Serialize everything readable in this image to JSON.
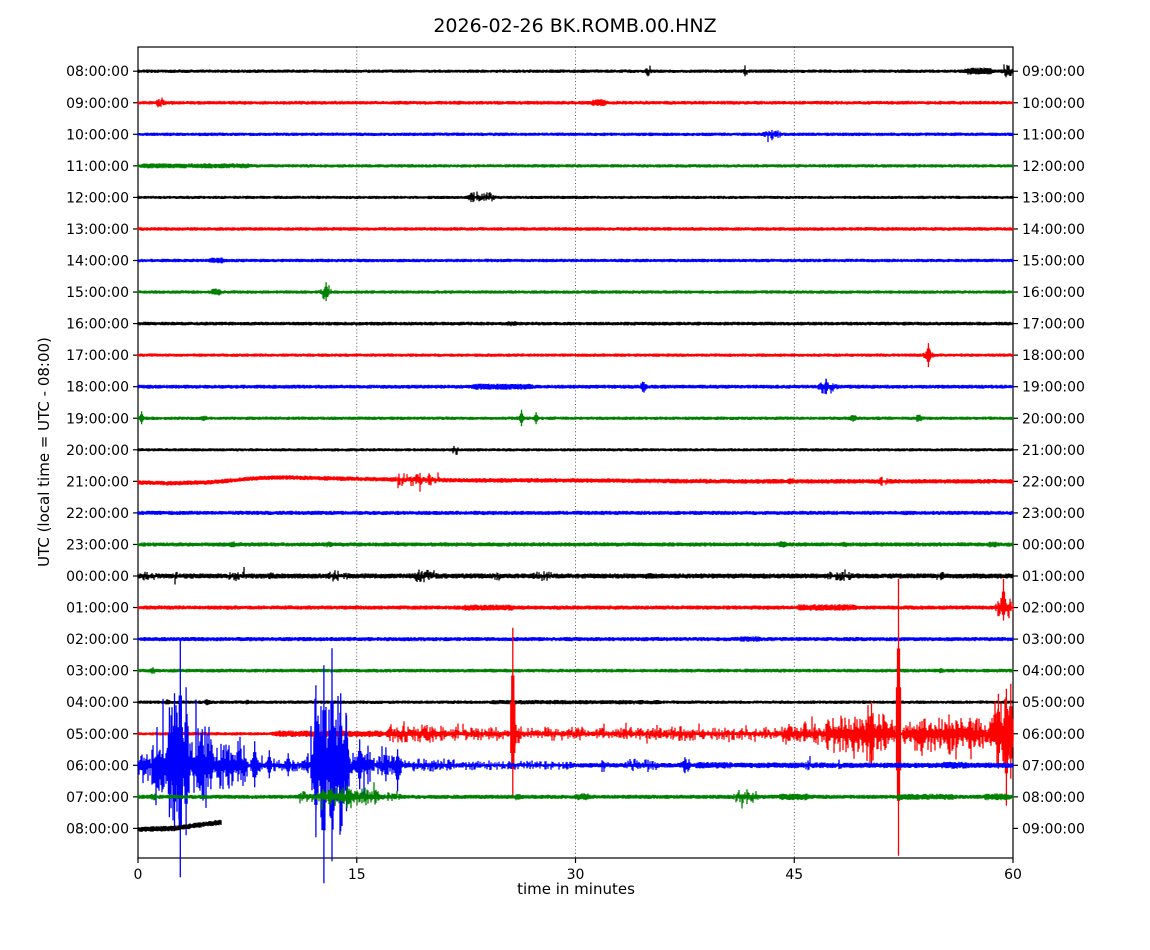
{
  "title": "2026-02-26 BK.ROMB.00.HNZ",
  "xlabel": "time in minutes",
  "ylabel": "UTC (local time = UTC - 08:00)",
  "chart_data": {
    "type": "line",
    "variant": "helicorder-dayplot-seismogram",
    "title": "2026-02-26 BK.ROMB.00.HNZ",
    "xlabel": "time in minutes",
    "ylabel": "UTC (local time = UTC - 08:00)",
    "xlim": [
      0,
      60
    ],
    "x_ticks": [
      0,
      15,
      30,
      45,
      60
    ],
    "grid_minutes": [
      15,
      30,
      45
    ],
    "minutes_per_row": 60,
    "color_cycle": [
      "#000000",
      "#ff0000",
      "#0000ff",
      "#008000"
    ],
    "rows": [
      {
        "utc": "08:00:00",
        "local": "09:00:00",
        "color": "#000000",
        "base": 1.5,
        "end": 60,
        "events": [
          [
            34.8,
            35.2,
            4
          ],
          [
            41.5,
            41.9,
            4
          ],
          [
            56.5,
            58.8,
            3
          ],
          [
            59.2,
            60,
            4.2
          ]
        ],
        "spikes": [],
        "wander": []
      },
      {
        "utc": "09:00:00",
        "local": "10:00:00",
        "color": "#ff0000",
        "base": 1.6,
        "end": 60,
        "events": [
          [
            1.2,
            1.9,
            3.6
          ],
          [
            30.9,
            32.3,
            3
          ]
        ],
        "spikes": [],
        "wander": []
      },
      {
        "utc": "10:00:00",
        "local": "11:00:00",
        "color": "#0000ff",
        "base": 1.5,
        "end": 60,
        "events": [
          [
            42.8,
            44.2,
            4
          ]
        ],
        "spikes": [],
        "wander": []
      },
      {
        "utc": "11:00:00",
        "local": "12:00:00",
        "color": "#008000",
        "base": 1.5,
        "end": 60,
        "events": [
          [
            0,
            8,
            2.2
          ]
        ],
        "spikes": [],
        "wander": []
      },
      {
        "utc": "12:00:00",
        "local": "13:00:00",
        "color": "#000000",
        "base": 1.4,
        "end": 60,
        "events": [
          [
            22.5,
            24.6,
            3.4
          ]
        ],
        "spikes": [],
        "wander": []
      },
      {
        "utc": "13:00:00",
        "local": "14:00:00",
        "color": "#ff0000",
        "base": 1.6,
        "end": 60,
        "events": [],
        "spikes": [],
        "wander": []
      },
      {
        "utc": "14:00:00",
        "local": "15:00:00",
        "color": "#0000ff",
        "base": 1.5,
        "end": 60,
        "events": [
          [
            4.7,
            6.1,
            2.6
          ]
        ],
        "spikes": [],
        "wander": []
      },
      {
        "utc": "15:00:00",
        "local": "16:00:00",
        "color": "#008000",
        "base": 1.5,
        "end": 60,
        "events": [
          [
            4.9,
            5.8,
            3
          ],
          [
            12.5,
            13.3,
            5
          ]
        ],
        "spikes": [
          [
            12.9,
            10,
            9
          ]
        ],
        "wander": []
      },
      {
        "utc": "16:00:00",
        "local": "17:00:00",
        "color": "#000000",
        "base": 1.6,
        "end": 60,
        "events": [
          [
            25,
            26.2,
            2.2
          ]
        ],
        "spikes": [],
        "wander": []
      },
      {
        "utc": "17:00:00",
        "local": "18:00:00",
        "color": "#ff0000",
        "base": 1.5,
        "end": 60,
        "events": [
          [
            53.8,
            54.6,
            4
          ]
        ],
        "spikes": [
          [
            54.2,
            12,
            12
          ]
        ],
        "wander": []
      },
      {
        "utc": "18:00:00",
        "local": "19:00:00",
        "color": "#0000ff",
        "base": 1.7,
        "end": 60,
        "events": [
          [
            22.7,
            27.3,
            2.6
          ],
          [
            34.4,
            34.9,
            3.5
          ],
          [
            46.6,
            48,
            5.5
          ]
        ],
        "spikes": [
          [
            34.6,
            5,
            5
          ],
          [
            47.2,
            7.5,
            7.5
          ]
        ],
        "wander": []
      },
      {
        "utc": "19:00:00",
        "local": "20:00:00",
        "color": "#008000",
        "base": 1.5,
        "end": 60,
        "events": [
          [
            4.3,
            4.8,
            2.5
          ],
          [
            48.8,
            49.3,
            3
          ],
          [
            53.3,
            53.8,
            3
          ]
        ],
        "spikes": [
          [
            0.25,
            7,
            6
          ],
          [
            26.3,
            8.5,
            8
          ],
          [
            27.3,
            6,
            6
          ]
        ],
        "wander": []
      },
      {
        "utc": "20:00:00",
        "local": "21:00:00",
        "color": "#000000",
        "base": 1.4,
        "end": 60,
        "events": [
          [
            21.5,
            22,
            3.5
          ]
        ],
        "spikes": [],
        "wander": []
      },
      {
        "utc": "21:00:00",
        "local": "22:00:00",
        "color": "#ff0000",
        "base": 2,
        "end": 60,
        "events": [
          [
            17.5,
            20.8,
            4.2
          ],
          [
            18.8,
            19.6,
            5.2
          ],
          [
            44.4,
            45.1,
            2.6
          ],
          [
            50.7,
            51.5,
            3.2
          ]
        ],
        "spikes": [],
        "wander": [
          [
            0,
            1
          ],
          [
            2,
            2
          ],
          [
            5,
            1
          ],
          [
            8,
            -3
          ],
          [
            10,
            -4
          ],
          [
            13,
            -3
          ],
          [
            17,
            -2
          ],
          [
            22,
            -1
          ],
          [
            30,
            -1
          ],
          [
            40,
            0
          ],
          [
            60,
            0
          ]
        ]
      },
      {
        "utc": "22:00:00",
        "local": "23:00:00",
        "color": "#0000ff",
        "base": 1.8,
        "end": 60,
        "events": [],
        "spikes": [],
        "wander": []
      },
      {
        "utc": "23:00:00",
        "local": "00:00:00",
        "color": "#008000",
        "base": 1.8,
        "end": 60,
        "events": [
          [
            6.2,
            6.8,
            2.6
          ],
          [
            12.8,
            13.4,
            2.6
          ],
          [
            26.8,
            27.3,
            2.2
          ],
          [
            43.9,
            44.5,
            3
          ],
          [
            48.2,
            48.8,
            2.6
          ],
          [
            58.2,
            59,
            2.6
          ]
        ],
        "spikes": [],
        "wander": []
      },
      {
        "utc": "00:00:00",
        "local": "01:00:00",
        "color": "#000000",
        "base": 2.2,
        "end": 60,
        "events": [
          [
            0,
            1.6,
            3.6
          ],
          [
            2.3,
            2.9,
            3.2
          ],
          [
            5.9,
            7.6,
            3.6
          ],
          [
            8.8,
            9.4,
            3
          ],
          [
            12.9,
            14.6,
            3.8
          ],
          [
            18.8,
            20.6,
            4.2
          ],
          [
            24.2,
            25,
            3.2
          ],
          [
            26.9,
            28.6,
            3.6
          ],
          [
            34.7,
            35.3,
            2.8
          ],
          [
            47,
            49.2,
            3.2
          ],
          [
            54.6,
            55.4,
            3.2
          ]
        ],
        "spikes": [],
        "wander": []
      },
      {
        "utc": "01:00:00",
        "local": "02:00:00",
        "color": "#ff0000",
        "base": 1.8,
        "end": 60,
        "events": [
          [
            22,
            26,
            2.6
          ],
          [
            45,
            49.5,
            2.8
          ],
          [
            58.8,
            60,
            8
          ]
        ],
        "spikes": [
          [
            59.35,
            29,
            13
          ]
        ],
        "wander": []
      },
      {
        "utc": "02:00:00",
        "local": "03:00:00",
        "color": "#0000ff",
        "base": 1.8,
        "end": 60,
        "events": [
          [
            41,
            43,
            2.3
          ]
        ],
        "spikes": [],
        "wander": []
      },
      {
        "utc": "03:00:00",
        "local": "04:00:00",
        "color": "#008000",
        "base": 1.6,
        "end": 60,
        "events": [
          [
            0.8,
            1.2,
            2.8
          ],
          [
            54.8,
            55.3,
            2.2
          ]
        ],
        "spikes": [],
        "wander": []
      },
      {
        "utc": "04:00:00",
        "local": "05:00:00",
        "color": "#000000",
        "base": 1.5,
        "end": 60,
        "events": [
          [
            1.8,
            2.2,
            2.6
          ],
          [
            4.5,
            5,
            2.6
          ],
          [
            7.3,
            7.7,
            2.4
          ],
          [
            24,
            36,
            1.9
          ]
        ],
        "spikes": [],
        "wander": []
      },
      {
        "utc": "05:00:00",
        "local": "06:00:00",
        "color": "#ff0000",
        "base": 1.5,
        "end": 60,
        "events": [
          [
            9,
            17,
            2.8
          ],
          [
            17,
            21.2,
            6
          ],
          [
            21.2,
            25.5,
            4.5
          ],
          [
            25.5,
            26.3,
            8
          ],
          [
            26.3,
            31,
            4.5
          ],
          [
            31,
            44,
            4
          ],
          [
            36.5,
            38.5,
            5
          ],
          [
            44,
            47,
            7
          ],
          [
            47,
            52,
            13
          ],
          [
            49.8,
            50.6,
            20
          ],
          [
            52.4,
            58.3,
            11
          ],
          [
            53.5,
            54.2,
            16
          ],
          [
            55.4,
            56.1,
            14
          ],
          [
            58.3,
            60,
            26
          ]
        ],
        "spikes": [
          [
            25.7,
            106,
            64
          ],
          [
            50.3,
            32,
            30
          ],
          [
            52.15,
            155,
            122
          ],
          [
            59,
            40,
            35
          ],
          [
            59.55,
            45,
            72
          ],
          [
            59.85,
            50,
            45
          ]
        ],
        "wander": []
      },
      {
        "utc": "06:00:00",
        "local": "07:00:00",
        "color": "#0000ff",
        "base": 2,
        "end": 60,
        "events": [
          [
            0,
            0.9,
            12
          ],
          [
            0.9,
            2,
            26
          ],
          [
            2,
            3.6,
            42
          ],
          [
            3.6,
            5.2,
            28
          ],
          [
            5.2,
            7.6,
            16
          ],
          [
            7.6,
            8.6,
            8
          ],
          [
            8.6,
            11.2,
            4.5
          ],
          [
            11.2,
            11.8,
            9
          ],
          [
            11.8,
            14.6,
            46
          ],
          [
            14.6,
            16.2,
            14
          ],
          [
            16.2,
            18.4,
            7
          ],
          [
            18.4,
            22,
            4.5
          ],
          [
            22,
            30,
            3.2
          ],
          [
            31.6,
            32.4,
            4.5
          ],
          [
            33.3,
            35.7,
            4.5
          ],
          [
            37.2,
            37.9,
            5.5
          ],
          [
            38,
            41,
            2.8
          ],
          [
            41,
            60,
            2.4
          ],
          [
            45.6,
            46.2,
            4
          ],
          [
            47.8,
            48.4,
            4
          ],
          [
            54.8,
            57.2,
            3
          ]
        ],
        "spikes": [
          [
            2.15,
            58,
            52
          ],
          [
            2.5,
            72,
            66
          ],
          [
            2.9,
            127,
            112
          ],
          [
            3.3,
            78,
            70
          ],
          [
            4.4,
            36,
            32
          ],
          [
            5,
            26,
            24
          ],
          [
            8,
            24,
            22
          ],
          [
            9,
            15,
            13
          ],
          [
            10.3,
            12,
            11
          ],
          [
            12.2,
            80,
            72
          ],
          [
            12.75,
            100,
            118
          ],
          [
            13.3,
            117,
            96
          ],
          [
            13.9,
            72,
            66
          ],
          [
            14.3,
            50,
            46
          ],
          [
            15.2,
            26,
            24
          ],
          [
            17,
            18,
            16
          ],
          [
            17.8,
            16,
            26
          ],
          [
            37.5,
            8,
            8
          ]
        ],
        "wander": []
      },
      {
        "utc": "07:00:00",
        "local": "08:00:00",
        "color": "#008000",
        "base": 1.8,
        "end": 60,
        "events": [
          [
            0.8,
            1.3,
            3
          ],
          [
            10.9,
            12.2,
            4
          ],
          [
            12.2,
            16.6,
            6
          ],
          [
            13.4,
            15.2,
            8
          ],
          [
            16.6,
            18.2,
            3.2
          ],
          [
            25.8,
            26.3,
            3
          ],
          [
            29.8,
            31.2,
            3
          ],
          [
            40.8,
            42.6,
            5
          ],
          [
            43.8,
            46.2,
            3
          ],
          [
            51.8,
            56.2,
            2.6
          ],
          [
            57.8,
            60,
            3
          ]
        ],
        "spikes": [],
        "wander": []
      },
      {
        "utc": "08:00:00",
        "local": "09:00:00",
        "color": "#000000",
        "base": 2.4,
        "end": 5.7,
        "events": [],
        "spikes": [],
        "wander": [
          [
            0,
            1
          ],
          [
            2.5,
            0
          ],
          [
            3.5,
            -2
          ],
          [
            5,
            -5
          ],
          [
            5.7,
            -6
          ]
        ]
      }
    ]
  }
}
